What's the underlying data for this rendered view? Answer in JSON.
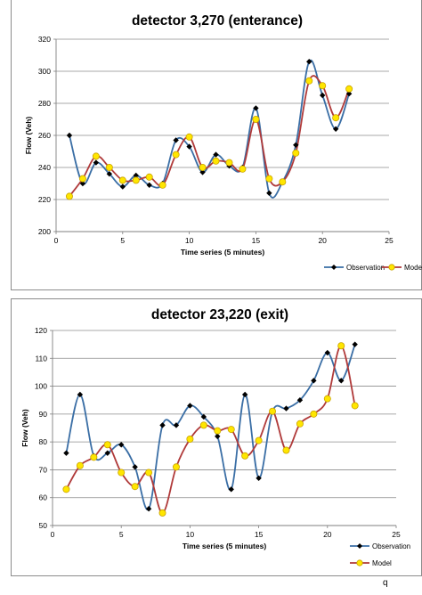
{
  "chart_data": [
    {
      "type": "line",
      "title": "detector 3,270 (enterance)",
      "xlabel": "Time series (5 minutes)",
      "ylabel": "Flow (Veh)",
      "xlim": [
        0,
        25
      ],
      "ylim": [
        200,
        320
      ],
      "xticks": [
        0,
        5,
        10,
        15,
        20,
        25
      ],
      "yticks": [
        200,
        220,
        240,
        260,
        280,
        300,
        320
      ],
      "grid": "horizontal",
      "legend": "bottom-right",
      "x": [
        1,
        2,
        3,
        4,
        5,
        6,
        7,
        8,
        9,
        10,
        11,
        12,
        13,
        14,
        15,
        16,
        17,
        18,
        19,
        20,
        21,
        22
      ],
      "series": [
        {
          "name": "Observation",
          "color": "#3a6ea5",
          "marker": "diamond",
          "values": [
            260,
            230,
            243,
            236,
            228,
            235,
            229,
            230,
            257,
            253,
            237,
            248,
            241,
            240,
            277,
            224,
            231,
            254,
            306,
            285,
            264,
            286
          ]
        },
        {
          "name": "Model",
          "color": "#b03a3a",
          "marker": "circle",
          "values": [
            222,
            233,
            247,
            240,
            232,
            232,
            234,
            229,
            248,
            259,
            240,
            244,
            243,
            239,
            270,
            233,
            231,
            249,
            294,
            291,
            271,
            289
          ]
        }
      ]
    },
    {
      "type": "line",
      "title": "detector 23,220 (exit)",
      "xlabel": "Time series (5 minutes)",
      "ylabel": "Flow (Veh)",
      "xlim": [
        0,
        25
      ],
      "ylim": [
        50,
        120
      ],
      "xticks": [
        0,
        5,
        10,
        15,
        20,
        25
      ],
      "yticks": [
        50,
        60,
        70,
        80,
        90,
        100,
        110,
        120
      ],
      "grid": "horizontal",
      "legend": "bottom-right",
      "x": [
        1,
        2,
        3,
        4,
        5,
        6,
        7,
        8,
        9,
        10,
        11,
        12,
        13,
        14,
        15,
        16,
        17,
        18,
        19,
        20,
        21,
        22
      ],
      "series": [
        {
          "name": "Observation",
          "color": "#3a6ea5",
          "marker": "diamond",
          "values": [
            76,
            97,
            75,
            76,
            79,
            71,
            56,
            86,
            86,
            93,
            89,
            82,
            63,
            97,
            67,
            91,
            92,
            95,
            102,
            112,
            102,
            115
          ]
        },
        {
          "name": "Model",
          "color": "#b03a3a",
          "marker": "circle",
          "values": [
            63,
            71.5,
            74.5,
            79,
            69,
            64,
            69,
            54.5,
            71,
            81,
            86,
            84,
            84.5,
            75,
            80.5,
            91,
            77,
            86.5,
            90,
            95.5,
            114.5,
            93
          ]
        }
      ]
    }
  ],
  "footer": {
    "text": "q"
  }
}
